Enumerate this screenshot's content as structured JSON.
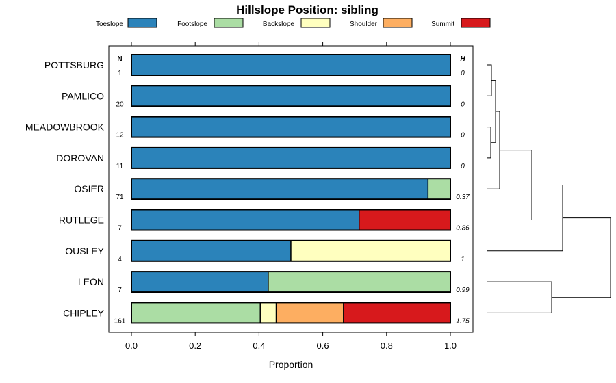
{
  "chart_data": {
    "type": "bar",
    "orientation": "horizontal",
    "stacked": true,
    "title": "Hillslope Position: sibling",
    "xlabel": "Proportion",
    "xlim": [
      0,
      1
    ],
    "xticks": [
      "0.0",
      "0.2",
      "0.4",
      "0.6",
      "0.8",
      "1.0"
    ],
    "xtick_values": [
      0,
      0.2,
      0.4,
      0.6,
      0.8,
      1.0
    ],
    "legend_placement": "top",
    "n_header": "N",
    "h_header": "H",
    "series": [
      {
        "name": "Toeslope",
        "color": "#2b83ba"
      },
      {
        "name": "Footslope",
        "color": "#abdda4"
      },
      {
        "name": "Backslope",
        "color": "#ffffbf"
      },
      {
        "name": "Shoulder",
        "color": "#fdae61"
      },
      {
        "name": "Summit",
        "color": "#d7191c"
      }
    ],
    "categories": [
      {
        "label": "POTTSBURG",
        "n": "1",
        "h": "0",
        "values": [
          1,
          0,
          0,
          0,
          0
        ]
      },
      {
        "label": "PAMLICO",
        "n": "20",
        "h": "0",
        "values": [
          1,
          0,
          0,
          0,
          0
        ]
      },
      {
        "label": "MEADOWBROOK",
        "n": "12",
        "h": "0",
        "values": [
          1,
          0,
          0,
          0,
          0
        ]
      },
      {
        "label": "DOROVAN",
        "n": "11",
        "h": "0",
        "values": [
          1,
          0,
          0,
          0,
          0
        ]
      },
      {
        "label": "OSIER",
        "n": "71",
        "h": "0.37",
        "values": [
          0.93,
          0.07,
          0,
          0,
          0
        ]
      },
      {
        "label": "RUTLEGE",
        "n": "7",
        "h": "0.86",
        "values": [
          0.714,
          0,
          0,
          0,
          0.286
        ]
      },
      {
        "label": "OUSLEY",
        "n": "4",
        "h": "1",
        "values": [
          0.5,
          0,
          0.5,
          0,
          0
        ]
      },
      {
        "label": "LEON",
        "n": "7",
        "h": "0.99",
        "values": [
          0.429,
          0.571,
          0,
          0,
          0
        ]
      },
      {
        "label": "CHIPLEY",
        "n": "161",
        "h": "1.75",
        "values": [
          0,
          0.404,
          0.05,
          0.211,
          0.335
        ]
      }
    ],
    "dendrogram": {
      "leaves": [
        "POTTSBURG",
        "PAMLICO",
        "MEADOWBROOK",
        "DOROVAN",
        "OSIER",
        "RUTLEGE",
        "OUSLEY",
        "LEON",
        "CHIPLEY"
      ],
      "merges": [
        {
          "a": 0,
          "b": 1,
          "height": 0.06
        },
        {
          "a": 2,
          "b": 3,
          "height": 0.05
        },
        {
          "a": 9,
          "b": 10,
          "height": 0.12
        },
        {
          "a": 11,
          "b": 4,
          "height": 0.18
        },
        {
          "a": 12,
          "b": 5,
          "height": 0.65
        },
        {
          "a": 13,
          "b": 6,
          "height": 1.1
        },
        {
          "a": 7,
          "b": 8,
          "height": 0.94
        },
        {
          "a": 14,
          "b": 15,
          "height": 1.8
        }
      ]
    }
  }
}
